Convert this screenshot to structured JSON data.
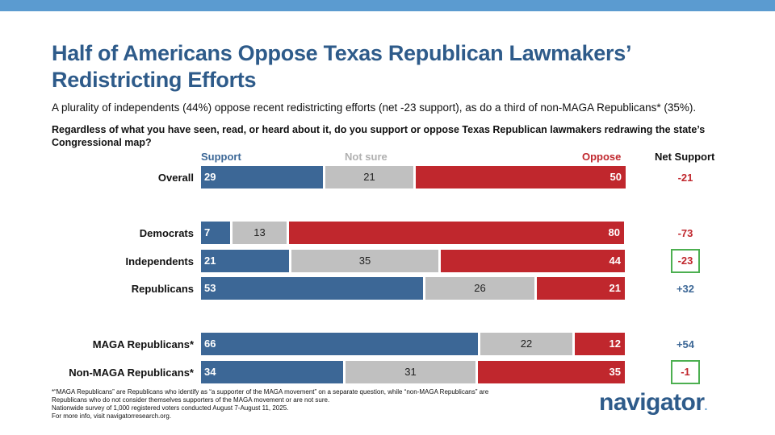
{
  "header": {
    "title": "Half of Americans Oppose Texas Republican Lawmakers’ Redistricting Efforts",
    "subtitle": "A plurality of independents (44%) oppose recent redistricting efforts (net -23 support), as do a third of non-MAGA Republicans* (35%).",
    "question": "Regardless of what you have seen, read, or heard about it, do you support or oppose Texas Republican lawmakers redrawing the state’s Congressional map?"
  },
  "colors": {
    "support": "#3c6796",
    "not_sure": "#c0c0c0",
    "oppose": "#c0272d",
    "highlight_box": "#4caf50",
    "topbar": "#5b9bd0"
  },
  "chart_data": {
    "type": "bar",
    "stacked": true,
    "orientation": "horizontal",
    "legend": [
      "Support",
      "Not sure",
      "Oppose"
    ],
    "net_label": "Net Support",
    "categories": [
      "Overall",
      "Democrats",
      "Independents",
      "Republicans",
      "MAGA Republicans*",
      "Non-MAGA Republicans*"
    ],
    "series": [
      {
        "name": "Support",
        "values": [
          29,
          7,
          21,
          53,
          66,
          34
        ]
      },
      {
        "name": "Not sure",
        "values": [
          21,
          13,
          35,
          26,
          22,
          31
        ]
      },
      {
        "name": "Oppose",
        "values": [
          50,
          80,
          44,
          21,
          12,
          35
        ]
      }
    ],
    "net": [
      "-21",
      "-73",
      "-23",
      "+32",
      "+54",
      "-1"
    ],
    "net_highlighted": [
      false,
      false,
      true,
      false,
      false,
      true
    ],
    "xlim": [
      0,
      100
    ]
  },
  "footnote": {
    "line1": "*“MAGA Republicans” are Republicans who identify as “a supporter of the MAGA movement” on a separate question, while “non-MAGA Republicans” are Republicans who do not consider themselves supporters of the MAGA movement or are not sure.",
    "line2": "Nationwide survey of 1,000 registered voters conducted August 7-August 11, 2025.",
    "line3": "For more info, visit navigatorresearch.org."
  },
  "logo": {
    "text": "navigator",
    "dot": "."
  }
}
